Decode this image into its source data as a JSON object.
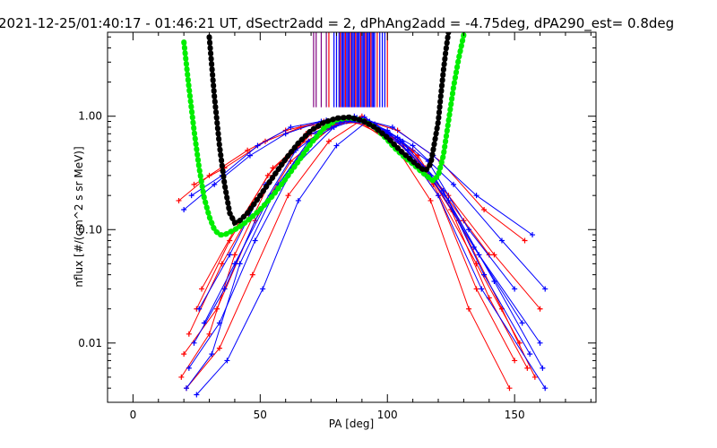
{
  "chart_data": {
    "type": "line",
    "title": "2021-12-25/01:40:17 - 01:46:21 UT, dSectr2add = 2, dPhAng2add = -4.75deg, dPA290_est=   0.8deg",
    "xlabel": "PA [deg]",
    "ylabel": "nflux [#/(cm^2 s sr MeV)]",
    "xlim": [
      -10,
      182
    ],
    "ylim": [
      0.003,
      5.5
    ],
    "yscale": "log",
    "grid": false,
    "x_ticks": [
      0,
      50,
      100,
      150
    ],
    "x_tick_labels": [
      "0",
      "50",
      "100",
      "150"
    ],
    "y_ticks": [
      0.01,
      0.1,
      1.0
    ],
    "y_tick_labels": [
      "0.01",
      "0.10",
      "1.00"
    ],
    "colors": {
      "red_series": "#ff0000",
      "blue_series": "#0000ff",
      "fit_green": "#00ee00",
      "fit_black": "#000000",
      "purple_markers": "#800080"
    },
    "series": [
      {
        "color": "green",
        "style": "thick dotted fit curve",
        "x": [
          20,
          22,
          24,
          26,
          28,
          30,
          32,
          34,
          36,
          38,
          40,
          43,
          46,
          50,
          55,
          60,
          65,
          70,
          75,
          80,
          85,
          90,
          95,
          100,
          103,
          106,
          110,
          113,
          116,
          118,
          120,
          122,
          124,
          126,
          128,
          130
        ],
        "y": [
          4.5,
          1.8,
          0.75,
          0.35,
          0.19,
          0.13,
          0.1,
          0.09,
          0.09,
          0.095,
          0.1,
          0.11,
          0.125,
          0.15,
          0.2,
          0.28,
          0.4,
          0.58,
          0.78,
          0.93,
          0.97,
          0.92,
          0.8,
          0.62,
          0.52,
          0.45,
          0.38,
          0.33,
          0.29,
          0.27,
          0.3,
          0.45,
          0.9,
          1.8,
          3.2,
          5.2
        ]
      },
      {
        "color": "black",
        "style": "thick dotted fit curve",
        "x": [
          30,
          32,
          34,
          36,
          38,
          40,
          42,
          45,
          50,
          55,
          60,
          65,
          70,
          75,
          80,
          85,
          90,
          95,
          100,
          105,
          110,
          113,
          115,
          117,
          118,
          120,
          121,
          122,
          123,
          124
        ],
        "y": [
          5.0,
          1.5,
          0.55,
          0.25,
          0.14,
          0.115,
          0.12,
          0.14,
          0.2,
          0.29,
          0.42,
          0.58,
          0.75,
          0.88,
          0.96,
          0.98,
          0.92,
          0.8,
          0.65,
          0.5,
          0.4,
          0.35,
          0.33,
          0.38,
          0.5,
          0.9,
          1.5,
          2.5,
          3.8,
          5.5
        ]
      }
    ],
    "vertical_markers_x": [
      71,
      72,
      74,
      76,
      77,
      79,
      80,
      81,
      81.5,
      82,
      82.5,
      83,
      83.5,
      84,
      84.5,
      85,
      85.5,
      86,
      86.5,
      87,
      87.5,
      88,
      88.5,
      89,
      89.5,
      90,
      90.5,
      91,
      91.5,
      92,
      92.5,
      93,
      93.5,
      94,
      94.5,
      95,
      96,
      97,
      98,
      99,
      100
    ],
    "vertical_markers_y_range": [
      1.2,
      5.5
    ],
    "scatter_profiles": {
      "red": [
        {
          "x": [
            18,
            30,
            45,
            60,
            75,
            88,
            100,
            115,
            130,
            140
          ],
          "y": [
            0.18,
            0.3,
            0.5,
            0.75,
            0.9,
            0.95,
            0.7,
            0.35,
            0.12,
            0.06
          ]
        },
        {
          "x": [
            20,
            33,
            48,
            62,
            78,
            90,
            105,
            120,
            135,
            150
          ],
          "y": [
            0.008,
            0.02,
            0.12,
            0.4,
            0.8,
            1.0,
            0.6,
            0.2,
            0.03,
            0.007
          ]
        },
        {
          "x": [
            22,
            35,
            50,
            65,
            80,
            92,
            110,
            125,
            140,
            155
          ],
          "y": [
            0.012,
            0.05,
            0.2,
            0.55,
            0.85,
            0.9,
            0.5,
            0.15,
            0.025,
            0.006
          ]
        },
        {
          "x": [
            25,
            38,
            53,
            68,
            82,
            95,
            112,
            128,
            145,
            158
          ],
          "y": [
            0.02,
            0.08,
            0.3,
            0.7,
            0.95,
            0.85,
            0.45,
            0.12,
            0.02,
            0.005
          ]
        },
        {
          "x": [
            19,
            30,
            40,
            55,
            70,
            85,
            100,
            118,
            135,
            152
          ],
          "y": [
            0.005,
            0.012,
            0.06,
            0.3,
            0.7,
            0.95,
            0.65,
            0.25,
            0.05,
            0.01
          ]
        },
        {
          "x": [
            24,
            36,
            52,
            66,
            80,
            91,
            104,
            121,
            138,
            154
          ],
          "y": [
            0.25,
            0.35,
            0.6,
            0.8,
            0.9,
            0.92,
            0.75,
            0.4,
            0.15,
            0.08
          ]
        },
        {
          "x": [
            21,
            34,
            47,
            61,
            77,
            89,
            103,
            117,
            132,
            148
          ],
          "y": [
            0.004,
            0.009,
            0.04,
            0.2,
            0.6,
            0.9,
            0.55,
            0.18,
            0.02,
            0.004
          ]
        },
        {
          "x": [
            27,
            40,
            55,
            70,
            84,
            96,
            108,
            124,
            142,
            160
          ],
          "y": [
            0.03,
            0.1,
            0.35,
            0.7,
            0.9,
            0.8,
            0.5,
            0.2,
            0.06,
            0.02
          ]
        }
      ],
      "blue": [
        {
          "x": [
            20,
            32,
            46,
            60,
            74,
            87,
            100,
            116,
            132,
            150
          ],
          "y": [
            0.15,
            0.25,
            0.45,
            0.7,
            0.9,
            1.0,
            0.75,
            0.4,
            0.1,
            0.03
          ]
        },
        {
          "x": [
            22,
            34,
            48,
            63,
            79,
            91,
            106,
            122,
            138,
            156
          ],
          "y": [
            0.006,
            0.015,
            0.08,
            0.35,
            0.8,
            0.98,
            0.6,
            0.22,
            0.04,
            0.008
          ]
        },
        {
          "x": [
            24,
            36,
            50,
            64,
            78,
            90,
            104,
            119,
            136,
            160
          ],
          "y": [
            0.01,
            0.03,
            0.15,
            0.5,
            0.85,
            0.95,
            0.65,
            0.28,
            0.06,
            0.01
          ]
        },
        {
          "x": [
            26,
            38,
            52,
            67,
            81,
            93,
            108,
            124,
            142,
            161
          ],
          "y": [
            0.02,
            0.06,
            0.25,
            0.65,
            0.9,
            0.9,
            0.5,
            0.18,
            0.035,
            0.006
          ]
        },
        {
          "x": [
            21,
            31,
            42,
            57,
            72,
            86,
            101,
            117,
            134,
            153
          ],
          "y": [
            0.004,
            0.008,
            0.05,
            0.25,
            0.7,
            0.95,
            0.7,
            0.3,
            0.07,
            0.015
          ]
        },
        {
          "x": [
            23,
            35,
            49,
            62,
            76,
            88,
            102,
            118,
            135,
            157
          ],
          "y": [
            0.2,
            0.3,
            0.55,
            0.8,
            0.92,
            0.97,
            0.8,
            0.45,
            0.2,
            0.09
          ]
        },
        {
          "x": [
            25,
            37,
            51,
            65,
            80,
            92,
            105,
            120,
            137,
            162
          ],
          "y": [
            0.0035,
            0.007,
            0.03,
            0.18,
            0.55,
            0.9,
            0.6,
            0.2,
            0.03,
            0.004
          ]
        },
        {
          "x": [
            28,
            40,
            54,
            69,
            83,
            95,
            110,
            126,
            145,
            162
          ],
          "y": [
            0.015,
            0.05,
            0.2,
            0.6,
            0.9,
            0.85,
            0.55,
            0.25,
            0.08,
            0.03
          ]
        }
      ]
    }
  }
}
